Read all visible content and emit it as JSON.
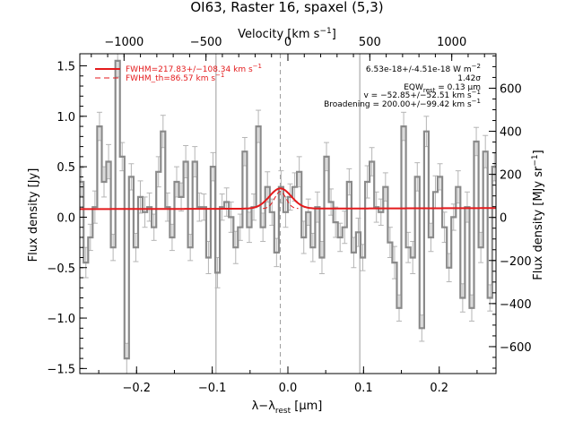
{
  "chart_data": {
    "type": "line",
    "title": "OI63, Raster 16, spaxel (5,3)",
    "xlabel": "λ−λ",
    "xlabel_sub": "rest",
    "xlabel_unit": " [μm]",
    "ylabel": "Flux density [Jy]",
    "top_xlabel": "Velocity [km s",
    "top_xlabel_sup": "−1",
    "top_xlabel_end": "]",
    "right_ylabel": "Flux density [MJy sr",
    "right_ylabel_sup": "−1",
    "right_ylabel_end": "]",
    "xlim": [
      -0.275,
      0.275
    ],
    "ylim": [
      -1.55,
      1.62
    ],
    "velocity_lim": [
      -1270,
      1270
    ],
    "right_lim": [
      -725,
      760
    ],
    "x_ticks": [
      -0.2,
      -0.1,
      0.0,
      0.1,
      0.2
    ],
    "x_tick_labels": [
      "−0.2",
      "−0.1",
      "0.0",
      "0.1",
      "0.2"
    ],
    "y_ticks": [
      -1.5,
      -1.0,
      -0.5,
      0.0,
      0.5,
      1.0,
      1.5
    ],
    "y_tick_labels": [
      "−1.5",
      "−1.0",
      "−0.5",
      "0.0",
      "0.5",
      "1.0",
      "1.5"
    ],
    "top_ticks": [
      -1000,
      -500,
      0,
      500,
      1000
    ],
    "top_tick_labels": [
      "−1000",
      "−500",
      "0",
      "500",
      "1000"
    ],
    "right_ticks": [
      -600,
      -400,
      -200,
      0,
      200,
      400,
      600
    ],
    "right_tick_labels": [
      "−600",
      "−400",
      "−200",
      "0",
      "200",
      "400",
      "600"
    ],
    "vertical_lines": [
      -0.095,
      0.095
    ],
    "center_line": -0.01,
    "annotations": [
      "6.53e-18+/-4.51e-18 W m",
      "1.42σ",
      "EQW",
      "v = −52.85+/−52.51 km s",
      "Broadening = 200.00+/−99.42 km s"
    ],
    "legend": [
      {
        "label": "FWHM=217.83+/−108.34 km s",
        "style": "solid"
      },
      {
        "label": "FWHM_th=86.57 km s",
        "style": "dashed"
      }
    ],
    "colors": {
      "data": "#8a8a8a",
      "error": "#b5b5b5",
      "fit": "#e41a1c",
      "frame": "#000000",
      "guide": "#9a9a9a"
    },
    "series": [
      {
        "style": "step",
        "x": [
          -0.273,
          -0.267,
          -0.261,
          -0.255,
          -0.249,
          -0.243,
          -0.237,
          -0.231,
          -0.225,
          -0.219,
          -0.213,
          -0.207,
          -0.201,
          -0.195,
          -0.189,
          -0.183,
          -0.177,
          -0.171,
          -0.165,
          -0.159,
          -0.153,
          -0.147,
          -0.141,
          -0.135,
          -0.129,
          -0.123,
          -0.117,
          -0.111,
          -0.105,
          -0.099,
          -0.093,
          -0.087,
          -0.081,
          -0.075,
          -0.069,
          -0.063,
          -0.057,
          -0.051,
          -0.045,
          -0.039,
          -0.033,
          -0.027,
          -0.021,
          -0.015,
          -0.009,
          -0.003,
          0.003,
          0.009,
          0.015,
          0.021,
          0.027,
          0.033,
          0.039,
          0.045,
          0.051,
          0.057,
          0.063,
          0.069,
          0.075,
          0.081,
          0.087,
          0.093,
          0.099,
          0.105,
          0.111,
          0.117,
          0.123,
          0.129,
          0.135,
          0.141,
          0.147,
          0.153,
          0.159,
          0.165,
          0.171,
          0.177,
          0.183,
          0.189,
          0.195,
          0.201,
          0.207,
          0.213,
          0.219,
          0.225,
          0.231,
          0.237,
          0.243,
          0.249,
          0.255,
          0.261,
          0.267,
          0.273
        ],
        "y": [
          0.35,
          -0.45,
          -0.2,
          0.1,
          0.9,
          0.35,
          0.55,
          -0.3,
          1.55,
          0.6,
          -1.4,
          0.4,
          -0.3,
          0.2,
          0.05,
          0.1,
          -0.1,
          0.45,
          0.85,
          0.1,
          -0.2,
          0.35,
          0.2,
          0.55,
          -0.3,
          0.55,
          0.1,
          0.1,
          -0.4,
          0.5,
          -0.55,
          0.1,
          0.15,
          0.0,
          -0.3,
          -0.1,
          0.65,
          -0.1,
          0.1,
          0.9,
          -0.1,
          0.3,
          0.05,
          -0.35,
          0.3,
          0.05,
          0.2,
          0.3,
          0.45,
          -0.2,
          0.05,
          -0.3,
          0.1,
          -0.4,
          0.6,
          0.15,
          -0.05,
          -0.2,
          -0.1,
          0.35,
          -0.35,
          -0.15,
          -0.4,
          0.35,
          0.55,
          0.1,
          0.05,
          0.3,
          -0.25,
          -0.45,
          -0.9,
          0.9,
          -0.3,
          -0.4,
          0.4,
          -1.1,
          0.85,
          -0.2,
          0.25,
          0.4,
          -0.1,
          -0.5,
          0.0,
          0.3,
          -0.8,
          0.1,
          -0.9,
          0.75,
          -0.3,
          0.65,
          -0.8,
          0.5
        ],
        "yerr": [
          0.14,
          0.15,
          0.13,
          0.16,
          0.14,
          0.15,
          0.17,
          0.13,
          0.16,
          0.14,
          0.15,
          0.13,
          0.14,
          0.16,
          0.15,
          0.14,
          0.13,
          0.15,
          0.16,
          0.14,
          0.13,
          0.15,
          0.14,
          0.16,
          0.13,
          0.15,
          0.14,
          0.13,
          0.16,
          0.14,
          0.15,
          0.13,
          0.14,
          0.15,
          0.16,
          0.13,
          0.14,
          0.15,
          0.13,
          0.16,
          0.14,
          0.15,
          0.13,
          0.14,
          0.16,
          0.15,
          0.13,
          0.14,
          0.15,
          0.16,
          0.13,
          0.14,
          0.15,
          0.16,
          0.14,
          0.13,
          0.15,
          0.14,
          0.16,
          0.13,
          0.15,
          0.14,
          0.13,
          0.16,
          0.14,
          0.15,
          0.13,
          0.14,
          0.15,
          0.16,
          0.13,
          0.14,
          0.15,
          0.16,
          0.14,
          0.13,
          0.15,
          0.14,
          0.16,
          0.13,
          0.15,
          0.14,
          0.13,
          0.16,
          0.14,
          0.15,
          0.13,
          0.14,
          0.15,
          0.16,
          0.13,
          0.14
        ]
      },
      {
        "style": "fit",
        "x": [
          -0.275,
          0.275
        ],
        "y": [
          0.08,
          0.09
        ],
        "center": -0.01,
        "amp": 0.2,
        "sigma": 0.0145
      },
      {
        "style": "thermal",
        "center": -0.01,
        "amp": 0.17,
        "sigma": 0.0075
      }
    ]
  }
}
